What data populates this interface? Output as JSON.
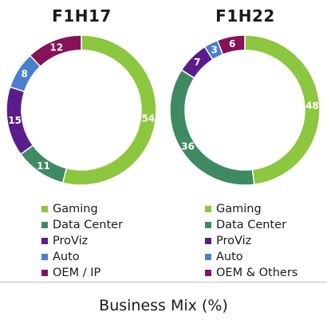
{
  "colors": {
    "Gaming": "#8dc63f",
    "Data Center": "#3f8a63",
    "ProViz": "#5b1c8c",
    "Auto": "#4a7fd0",
    "OEM": "#86135a",
    "label_text": "#ffffff"
  },
  "chart_data": [
    {
      "type": "pie",
      "title": "F1H17",
      "categories": [
        "Gaming",
        "Data Center",
        "ProViz",
        "Auto",
        "OEM / IP"
      ],
      "values": [
        54,
        11,
        15,
        8,
        12
      ],
      "legend": "below"
    },
    {
      "type": "pie",
      "title": "F1H22",
      "categories": [
        "Gaming",
        "Data Center",
        "ProViz",
        "Auto",
        "OEM & Others"
      ],
      "values": [
        48,
        36,
        7,
        3,
        6
      ],
      "legend": "below"
    }
  ],
  "footer": {
    "caption": "Business Mix (%)"
  }
}
